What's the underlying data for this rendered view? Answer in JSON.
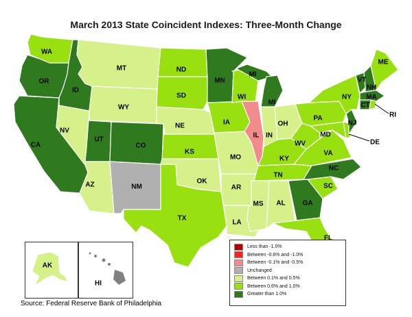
{
  "title": "March 2013 State Coincident Indexes: Three-Month Change",
  "source": "Source: Federal Reserve Bank of Philadelphia",
  "legend": [
    {
      "label": "Less than -1.0%",
      "color": "#b40000"
    },
    {
      "label": "Between -0.6% and -1.0%",
      "color": "#ff2020"
    },
    {
      "label": "Between -0.1% and -0.5%",
      "color": "#f28b8b"
    },
    {
      "label": "Unchanged",
      "color": "#b0b0b0"
    },
    {
      "label": "Between 0.1% and 0.5%",
      "color": "#d6f08a"
    },
    {
      "label": "Between 0.6% and 1.0%",
      "color": "#99e010"
    },
    {
      "label": "Greater than 1.0%",
      "color": "#2f7a1e"
    }
  ],
  "colors": {
    "dark_green": "#2f7a1e",
    "mid_green": "#99e010",
    "light_green": "#d6f08a",
    "gray": "#b0b0b0",
    "pink": "#f28b8b",
    "hawaii": "#808080"
  },
  "states": {
    "WA": "mid",
    "OR": "dark",
    "CA": "dark",
    "ID": "dark",
    "NV": "light",
    "MT": "light",
    "WY": "light",
    "UT": "dark",
    "CO": "dark",
    "AZ": "light",
    "NM": "gray",
    "ND": "mid",
    "SD": "mid",
    "NE": "light",
    "KS": "mid",
    "OK": "light",
    "TX": "mid",
    "MN": "dark",
    "IA": "mid",
    "MO": "light",
    "AR": "light",
    "LA": "light",
    "WI": "mid",
    "IL": "pink",
    "MI": "dark",
    "IN": "light",
    "OH": "light",
    "KY": "mid",
    "TN": "mid",
    "MS": "light",
    "AL": "light",
    "GA": "dark",
    "FL": "mid",
    "SC": "mid",
    "NC": "dark",
    "VA": "mid",
    "WV": "mid",
    "MD": "mid",
    "DE": "mid",
    "PA": "mid",
    "NJ": "dark",
    "NY": "mid",
    "VT": "dark",
    "NH": "dark",
    "ME": "mid",
    "MA": "dark",
    "CT": "dark",
    "RI": "mid",
    "AK": "light",
    "HI": "gray"
  },
  "labels": {
    "WA": "WA",
    "OR": "OR",
    "CA": "CA",
    "ID": "ID",
    "NV": "NV",
    "MT": "MT",
    "WY": "WY",
    "UT": "UT",
    "CO": "CO",
    "AZ": "AZ",
    "NM": "NM",
    "ND": "ND",
    "SD": "SD",
    "NE": "NE",
    "KS": "KS",
    "OK": "OK",
    "TX": "TX",
    "MN": "MN",
    "IA": "IA",
    "MO": "MO",
    "AR": "AR",
    "LA": "LA",
    "WI": "WI",
    "IL": "IL",
    "MI": "MI",
    "MI2": "MI",
    "IN": "IN",
    "OH": "OH",
    "KY": "KY",
    "TN": "TN",
    "MS": "MS",
    "AL": "AL",
    "GA": "GA",
    "FL": "FL",
    "SC": "SC",
    "NC": "NC",
    "VA": "VA",
    "WV": "WV",
    "MD": "MD",
    "DE": "DE",
    "PA": "PA",
    "NJ": "NJ",
    "NY": "NY",
    "VT": "VT",
    "NH": "NH",
    "ME": "ME",
    "MA": "MA",
    "CT": "CT",
    "RI": "RI",
    "AK": "AK",
    "HI": "HI"
  }
}
